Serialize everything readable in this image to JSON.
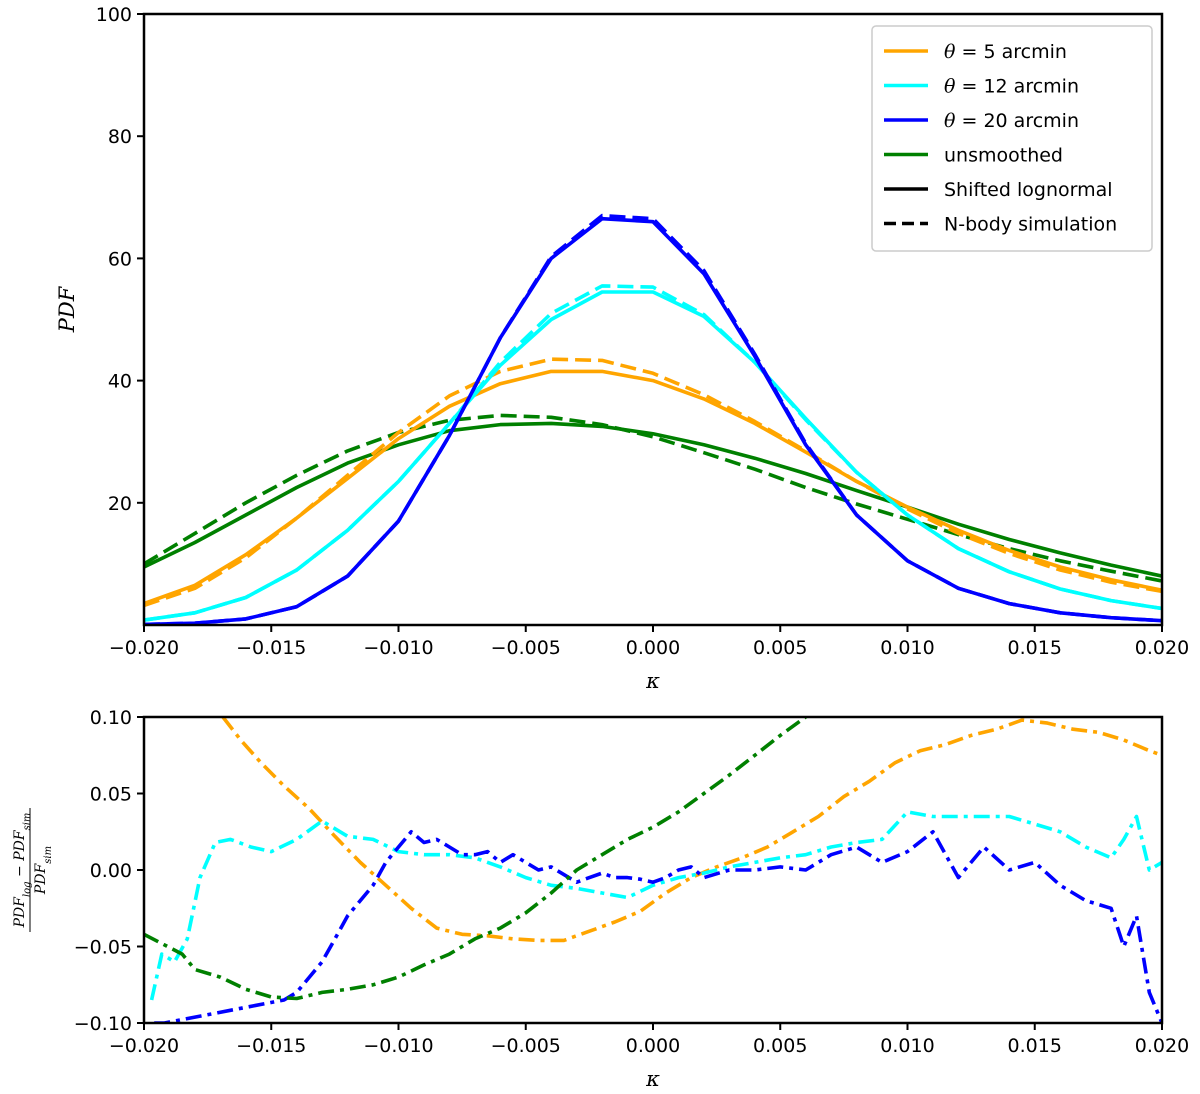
{
  "chart_data": [
    {
      "type": "line",
      "name": "pdf",
      "xlabel": "κ",
      "ylabel": "PDF",
      "xlim": [
        -0.02,
        0.02
      ],
      "ylim": [
        0,
        100
      ],
      "xticks": [
        -0.02,
        -0.015,
        -0.01,
        -0.005,
        0.0,
        0.005,
        0.01,
        0.015,
        0.02
      ],
      "xtick_labels": [
        "−0.020",
        "−0.015",
        "−0.010",
        "−0.005",
        "0.000",
        "0.005",
        "0.010",
        "0.015",
        "0.020"
      ],
      "yticks": [
        20,
        40,
        60,
        80,
        100
      ],
      "ytick_labels": [
        "20",
        "40",
        "60",
        "80",
        "100"
      ],
      "legend": {
        "position": "top-right",
        "entries": [
          {
            "label_math": "θ = ",
            "label_text": "5 arcmin",
            "color": "#ffa500",
            "style": "solid"
          },
          {
            "label_math": "θ = ",
            "label_text": "12 arcmin",
            "color": "#00ffff",
            "style": "solid"
          },
          {
            "label_math": "θ = ",
            "label_text": "20 arcmin",
            "color": "#0000ff",
            "style": "solid"
          },
          {
            "label_math": "",
            "label_text": "unsmoothed",
            "color": "#008000",
            "style": "solid"
          },
          {
            "label_math": "",
            "label_text": "Shifted lognormal",
            "color": "#000000",
            "style": "solid"
          },
          {
            "label_math": "",
            "label_text": "N-body simulation",
            "color": "#000000",
            "style": "dashed"
          }
        ]
      },
      "series": [
        {
          "name": "unsmoothed lognormal",
          "color": "#008000",
          "style": "solid",
          "x": [
            -0.02,
            -0.018,
            -0.016,
            -0.014,
            -0.012,
            -0.01,
            -0.008,
            -0.006,
            -0.004,
            -0.002,
            0.0,
            0.002,
            0.004,
            0.006,
            0.008,
            0.01,
            0.012,
            0.014,
            0.016,
            0.018,
            0.02
          ],
          "y": [
            9.5,
            13.5,
            18,
            22.5,
            26.5,
            29.5,
            31.8,
            32.8,
            33,
            32.5,
            31.3,
            29.5,
            27.3,
            24.8,
            22,
            19.3,
            16.5,
            14,
            11.8,
            9.8,
            8
          ]
        },
        {
          "name": "unsmoothed simulation",
          "color": "#008000",
          "style": "dashed",
          "x": [
            -0.02,
            -0.018,
            -0.016,
            -0.014,
            -0.012,
            -0.01,
            -0.008,
            -0.006,
            -0.004,
            -0.002,
            0.0,
            0.002,
            0.004,
            0.006,
            0.008,
            0.01,
            0.012,
            0.014,
            0.016,
            0.018,
            0.02
          ],
          "y": [
            10,
            15,
            20,
            24.5,
            28.5,
            31.5,
            33.5,
            34.3,
            34,
            32.8,
            30.8,
            28.2,
            25.5,
            22.5,
            19.8,
            17.3,
            14.8,
            12.5,
            10.5,
            8.8,
            7.2
          ]
        },
        {
          "name": "5 arcmin lognormal",
          "color": "#ffa500",
          "style": "solid",
          "x": [
            -0.02,
            -0.018,
            -0.016,
            -0.014,
            -0.012,
            -0.01,
            -0.008,
            -0.006,
            -0.004,
            -0.002,
            0.0,
            0.002,
            0.004,
            0.006,
            0.008,
            0.01,
            0.012,
            0.014,
            0.016,
            0.018,
            0.02
          ],
          "y": [
            3.5,
            6.5,
            11.5,
            17.5,
            24,
            30.5,
            35.8,
            39.5,
            41.5,
            41.5,
            40,
            37,
            33,
            28.3,
            23.5,
            19.3,
            15.5,
            12.2,
            9.5,
            7.4,
            5.7
          ]
        },
        {
          "name": "5 arcmin simulation",
          "color": "#ffa500",
          "style": "dashed",
          "x": [
            -0.02,
            -0.018,
            -0.016,
            -0.014,
            -0.012,
            -0.01,
            -0.008,
            -0.006,
            -0.004,
            -0.002,
            0.0,
            0.002,
            0.004,
            0.006,
            0.008,
            0.01,
            0.012,
            0.014,
            0.016,
            0.018,
            0.02
          ],
          "y": [
            3.2,
            6,
            11,
            17.5,
            24.5,
            31.5,
            37.5,
            41.5,
            43.5,
            43.3,
            41.2,
            37.7,
            33.3,
            28.5,
            23.5,
            19,
            15,
            11.7,
            9,
            7,
            5.5
          ]
        },
        {
          "name": "12 arcmin lognormal",
          "color": "#00ffff",
          "style": "solid",
          "x": [
            -0.02,
            -0.018,
            -0.016,
            -0.014,
            -0.012,
            -0.01,
            -0.008,
            -0.006,
            -0.004,
            -0.002,
            0.0,
            0.002,
            0.004,
            0.006,
            0.008,
            0.01,
            0.012,
            0.014,
            0.016,
            0.018,
            0.02
          ],
          "y": [
            0.8,
            2,
            4.5,
            9,
            15.5,
            23.5,
            33,
            42.5,
            50,
            54.5,
            54.5,
            50.5,
            43,
            33.8,
            25,
            18,
            12.5,
            8.7,
            5.9,
            4,
            2.7
          ]
        },
        {
          "name": "12 arcmin simulation",
          "color": "#00ffff",
          "style": "dashed",
          "x": [
            -0.02,
            -0.018,
            -0.016,
            -0.014,
            -0.012,
            -0.01,
            -0.008,
            -0.006,
            -0.004,
            -0.002,
            0.0,
            0.002,
            0.004,
            0.006,
            0.008,
            0.01,
            0.012,
            0.014,
            0.016,
            0.018,
            0.02
          ],
          "y": [
            0.8,
            2,
            4.5,
            9,
            15.5,
            23.5,
            33,
            43,
            51,
            55.5,
            55.3,
            50.8,
            43,
            33.6,
            25,
            18,
            12.5,
            8.7,
            5.9,
            4,
            2.7
          ]
        },
        {
          "name": "20 arcmin lognormal",
          "color": "#0000ff",
          "style": "solid",
          "x": [
            -0.02,
            -0.018,
            -0.016,
            -0.014,
            -0.012,
            -0.01,
            -0.008,
            -0.006,
            -0.004,
            -0.002,
            0.0,
            0.002,
            0.004,
            0.006,
            0.008,
            0.01,
            0.012,
            0.014,
            0.016,
            0.018,
            0.02
          ],
          "y": [
            0.1,
            0.3,
            1,
            3,
            8,
            17,
            31,
            47,
            60,
            66.5,
            66,
            57.5,
            44,
            29.5,
            18,
            10.5,
            6,
            3.5,
            2,
            1.2,
            0.7
          ]
        },
        {
          "name": "20 arcmin simulation",
          "color": "#0000ff",
          "style": "dashed",
          "x": [
            -0.02,
            -0.018,
            -0.016,
            -0.014,
            -0.012,
            -0.01,
            -0.008,
            -0.006,
            -0.004,
            -0.002,
            0.0,
            0.002,
            0.004,
            0.006,
            0.008,
            0.01,
            0.012,
            0.014,
            0.016,
            0.018,
            0.02
          ],
          "y": [
            0.1,
            0.3,
            1,
            3,
            8,
            17,
            31,
            47,
            60.3,
            67,
            66.5,
            58,
            44.3,
            29.7,
            18,
            10.5,
            6,
            3.5,
            2,
            1.2,
            0.7
          ]
        }
      ]
    },
    {
      "type": "line",
      "name": "residual",
      "xlabel": "κ",
      "ylabel_num": "PDF",
      "ylabel_num_sub1": "log",
      "ylabel_minus": " − ",
      "ylabel_num2": "PDF",
      "ylabel_num_sub2": "sim",
      "ylabel_den": "PDF",
      "ylabel_den_sub": "sim",
      "xlim": [
        -0.02,
        0.02
      ],
      "ylim": [
        -0.1,
        0.1
      ],
      "xticks": [
        -0.02,
        -0.015,
        -0.01,
        -0.005,
        0.0,
        0.005,
        0.01,
        0.015,
        0.02
      ],
      "xtick_labels": [
        "−0.020",
        "−0.015",
        "−0.010",
        "−0.005",
        "0.000",
        "0.005",
        "0.010",
        "0.015",
        "0.020"
      ],
      "yticks": [
        -0.1,
        -0.05,
        0.0,
        0.05,
        0.1
      ],
      "ytick_labels": [
        "−0.10",
        "−0.05",
        "0.00",
        "0.05",
        "0.10"
      ],
      "series": [
        {
          "name": "5 arcmin residual",
          "color": "#ffa500",
          "style": "dashdot",
          "x": [
            -0.0169,
            -0.0162,
            -0.0154,
            -0.0145,
            -0.0135,
            -0.0125,
            -0.0115,
            -0.0105,
            -0.0095,
            -0.0085,
            -0.0075,
            -0.0065,
            -0.0055,
            -0.0045,
            -0.0035,
            -0.0025,
            -0.0015,
            -0.0005,
            0.0005,
            0.0015,
            0.0025,
            0.0035,
            0.0045,
            0.0055,
            0.0065,
            0.0075,
            0.0085,
            0.0095,
            0.0105,
            0.0115,
            0.0125,
            0.0135,
            0.0145,
            0.0155,
            0.0165,
            0.0175,
            0.0185,
            0.0195,
            0.02
          ],
          "y": [
            0.1,
            0.085,
            0.07,
            0.055,
            0.04,
            0.022,
            0.005,
            -0.01,
            -0.025,
            -0.038,
            -0.042,
            -0.043,
            -0.045,
            -0.046,
            -0.046,
            -0.04,
            -0.034,
            -0.027,
            -0.015,
            -0.005,
            0.002,
            0.008,
            0.015,
            0.025,
            0.035,
            0.048,
            0.058,
            0.07,
            0.078,
            0.082,
            0.088,
            0.092,
            0.098,
            0.096,
            0.092,
            0.09,
            0.085,
            0.078,
            0.075
          ]
        },
        {
          "name": "12 arcmin residual",
          "color": "#00ffff",
          "style": "dashdot",
          "x": [
            -0.0197,
            -0.0193,
            -0.0188,
            -0.0183,
            -0.0178,
            -0.0172,
            -0.0166,
            -0.0158,
            -0.015,
            -0.014,
            -0.013,
            -0.012,
            -0.011,
            -0.01,
            -0.009,
            -0.008,
            -0.007,
            -0.006,
            -0.005,
            -0.004,
            -0.003,
            -0.002,
            -0.001,
            0.0,
            0.001,
            0.002,
            0.003,
            0.004,
            0.005,
            0.006,
            0.007,
            0.008,
            0.009,
            0.01,
            0.011,
            0.012,
            0.013,
            0.014,
            0.015,
            0.016,
            0.017,
            0.018,
            0.0185,
            0.019,
            0.0195,
            0.02
          ],
          "y": [
            -0.085,
            -0.055,
            -0.06,
            -0.045,
            -0.005,
            0.018,
            0.02,
            0.015,
            0.012,
            0.02,
            0.032,
            0.022,
            0.02,
            0.012,
            0.01,
            0.01,
            0.008,
            0.002,
            -0.005,
            -0.01,
            -0.012,
            -0.015,
            -0.018,
            -0.01,
            -0.005,
            -0.002,
            0.002,
            0.005,
            0.008,
            0.01,
            0.015,
            0.018,
            0.02,
            0.038,
            0.035,
            0.035,
            0.035,
            0.035,
            0.03,
            0.025,
            0.015,
            0.008,
            0.02,
            0.035,
            0.0,
            0.005
          ]
        },
        {
          "name": "20 arcmin residual",
          "color": "#0000ff",
          "style": "dashdot",
          "x": [
            -0.0196,
            -0.0192,
            -0.0145,
            -0.014,
            -0.0135,
            -0.013,
            -0.0125,
            -0.012,
            -0.0115,
            -0.011,
            -0.0105,
            -0.01,
            -0.0095,
            -0.009,
            -0.0085,
            -0.008,
            -0.0075,
            -0.007,
            -0.0065,
            -0.006,
            -0.0055,
            -0.005,
            -0.0045,
            -0.004,
            -0.0035,
            -0.003,
            -0.0025,
            -0.002,
            -0.0015,
            -0.001,
            -0.0005,
            0.0,
            0.0005,
            0.001,
            0.0015,
            0.002,
            0.003,
            0.004,
            0.005,
            0.006,
            0.007,
            0.008,
            0.009,
            0.01,
            0.011,
            0.012,
            0.013,
            0.014,
            0.015,
            0.016,
            0.017,
            0.018,
            0.0185,
            0.019,
            0.0195,
            0.02
          ],
          "y": [
            -0.1,
            -0.1,
            -0.085,
            -0.08,
            -0.07,
            -0.06,
            -0.045,
            -0.03,
            -0.02,
            -0.01,
            0.005,
            0.015,
            0.025,
            0.018,
            0.02,
            0.015,
            0.01,
            0.01,
            0.012,
            0.005,
            0.01,
            0.005,
            0.0,
            0.002,
            -0.003,
            -0.008,
            -0.005,
            -0.002,
            -0.005,
            -0.005,
            -0.006,
            -0.008,
            -0.005,
            0.0,
            0.002,
            -0.005,
            0.0,
            0.0,
            0.002,
            0.0,
            0.01,
            0.015,
            0.005,
            0.012,
            0.025,
            -0.005,
            0.015,
            0.0,
            0.005,
            -0.01,
            -0.02,
            -0.025,
            -0.05,
            -0.03,
            -0.08,
            -0.1
          ]
        },
        {
          "name": "unsmoothed residual",
          "color": "#008000",
          "style": "dashdot",
          "x": [
            -0.02,
            -0.0185,
            -0.018,
            -0.017,
            -0.016,
            -0.015,
            -0.014,
            -0.013,
            -0.012,
            -0.011,
            -0.01,
            -0.009,
            -0.008,
            -0.007,
            -0.006,
            -0.005,
            -0.004,
            -0.003,
            -0.002,
            -0.001,
            0.0,
            0.001,
            0.002,
            0.003,
            0.004,
            0.005,
            0.006
          ],
          "y": [
            -0.042,
            -0.055,
            -0.065,
            -0.07,
            -0.078,
            -0.083,
            -0.084,
            -0.08,
            -0.078,
            -0.075,
            -0.07,
            -0.062,
            -0.055,
            -0.045,
            -0.038,
            -0.028,
            -0.015,
            0.0,
            0.01,
            0.02,
            0.028,
            0.038,
            0.05,
            0.062,
            0.075,
            0.088,
            0.1
          ]
        }
      ]
    }
  ]
}
